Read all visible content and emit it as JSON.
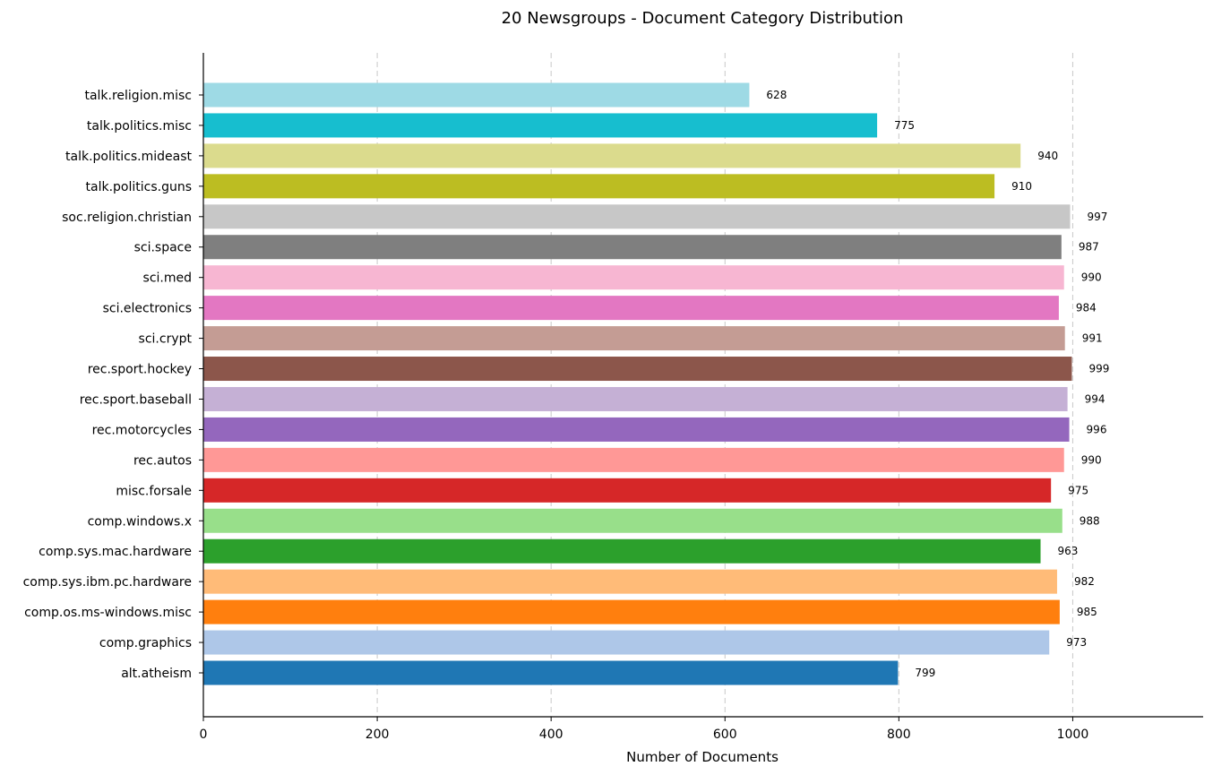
{
  "chart_data": {
    "type": "bar",
    "orientation": "horizontal",
    "title": "20 Newsgroups - Document Category Distribution",
    "xlabel": "Number of Documents",
    "ylabel": "",
    "xlim": [
      0,
      1150
    ],
    "xticks": [
      "0",
      "200",
      "400",
      "600",
      "800",
      "1000"
    ],
    "grid": "x-dashed",
    "categories": [
      "alt.atheism",
      "comp.graphics",
      "comp.os.ms-windows.misc",
      "comp.sys.ibm.pc.hardware",
      "comp.sys.mac.hardware",
      "comp.windows.x",
      "misc.forsale",
      "rec.autos",
      "rec.motorcycles",
      "rec.sport.baseball",
      "rec.sport.hockey",
      "sci.crypt",
      "sci.electronics",
      "sci.med",
      "sci.space",
      "soc.religion.christian",
      "talk.politics.guns",
      "talk.politics.mideast",
      "talk.politics.misc",
      "talk.religion.misc"
    ],
    "values": [
      799,
      973,
      985,
      982,
      963,
      988,
      975,
      990,
      996,
      994,
      999,
      991,
      984,
      990,
      987,
      997,
      910,
      940,
      775,
      628
    ],
    "colors": [
      "#1f77b4",
      "#aec7e8",
      "#ff7f0e",
      "#ffbb78",
      "#2ca02c",
      "#98df8a",
      "#d62728",
      "#ff9896",
      "#9467bd",
      "#c5b0d5",
      "#8c564b",
      "#c49c94",
      "#e377c2",
      "#f7b6d2",
      "#7f7f7f",
      "#c7c7c7",
      "#bcbd22",
      "#dbdb8d",
      "#17becf",
      "#9edae5"
    ]
  }
}
